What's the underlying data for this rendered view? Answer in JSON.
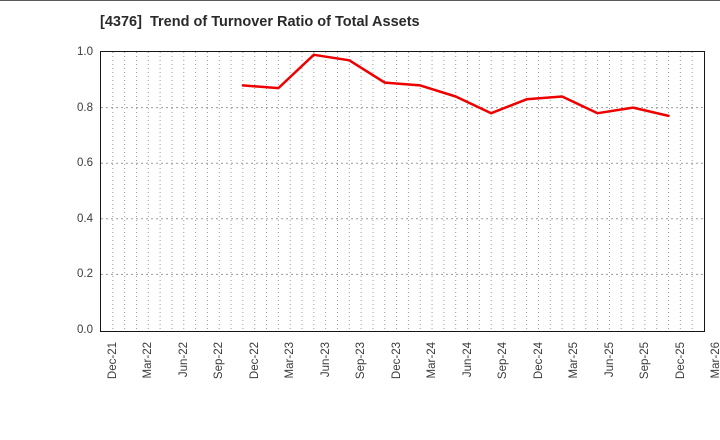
{
  "page": {
    "top_divider_color": "#5a5a5a",
    "background": "#ffffff"
  },
  "chart_data": {
    "type": "line",
    "title": "[4376]  Trend of Turnover Ratio of Total Assets",
    "title_color": "#2a2a2a",
    "xlabel": "",
    "ylabel": "",
    "ylim": [
      0.0,
      1.0
    ],
    "y_tick_labels": [
      "0.0",
      "0.2",
      "0.4",
      "0.6",
      "0.8",
      "1.0"
    ],
    "x_tick_labels": [
      "Dec-21",
      "Mar-22",
      "Jun-22",
      "Sep-22",
      "Dec-22",
      "Mar-23",
      "Jun-23",
      "Sep-23",
      "Dec-23",
      "Mar-24",
      "Jun-24",
      "Sep-24",
      "Dec-24",
      "Mar-25",
      "Jun-25",
      "Sep-25",
      "Dec-25",
      "Mar-26"
    ],
    "grid": {
      "shown": true,
      "style": "dotted",
      "color": "#9a9a9a",
      "vertical_spacing": "monthly",
      "horizontal_spacing": 0.2
    },
    "legend": "none",
    "frame_color": "#161616",
    "series": [
      {
        "name": "Turnover Ratio of Total Assets",
        "color": "#ee0000",
        "line_width": 2.5,
        "x": [
          "Dec-22",
          "Mar-23",
          "Jun-23",
          "Sep-23",
          "Dec-23",
          "Mar-24",
          "Jun-24",
          "Sep-24",
          "Dec-24",
          "Mar-25",
          "Jun-25",
          "Sep-25",
          "Dec-25"
        ],
        "values": [
          0.88,
          0.87,
          0.99,
          0.97,
          0.89,
          0.88,
          0.84,
          0.78,
          0.83,
          0.84,
          0.78,
          0.8,
          0.77
        ]
      }
    ]
  }
}
